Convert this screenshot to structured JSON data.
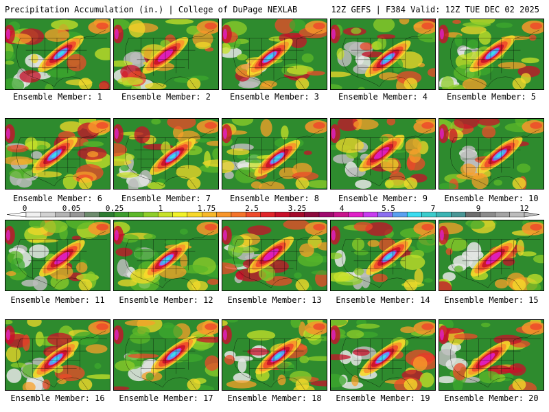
{
  "header": {
    "title_left": "Precipitation Accumulation (in.) | College of DuPage NEXLAB",
    "title_right": "12Z GEFS | F384 Valid: 12Z TUE DEC 02 2025"
  },
  "members": [
    {
      "label": "Ensemble Member: 1"
    },
    {
      "label": "Ensemble Member: 2"
    },
    {
      "label": "Ensemble Member: 3"
    },
    {
      "label": "Ensemble Member: 4"
    },
    {
      "label": "Ensemble Member: 5"
    },
    {
      "label": "Ensemble Member: 6"
    },
    {
      "label": "Ensemble Member: 7"
    },
    {
      "label": "Ensemble Member: 8"
    },
    {
      "label": "Ensemble Member: 9"
    },
    {
      "label": "Ensemble Member: 10"
    },
    {
      "label": "Ensemble Member: 11"
    },
    {
      "label": "Ensemble Member: 12"
    },
    {
      "label": "Ensemble Member: 13"
    },
    {
      "label": "Ensemble Member: 14"
    },
    {
      "label": "Ensemble Member: 15"
    },
    {
      "label": "Ensemble Member: 16"
    },
    {
      "label": "Ensemble Member: 17"
    },
    {
      "label": "Ensemble Member: 18"
    },
    {
      "label": "Ensemble Member: 19"
    },
    {
      "label": "Ensemble Member: 20"
    }
  ],
  "colorbar": {
    "tick_labels": [
      "0",
      "0.05",
      "0.25",
      "1",
      "1.75",
      "2.5",
      "3.25",
      "4",
      "5.5",
      "7",
      "9",
      "12"
    ],
    "colors": [
      "#f0f0f0",
      "#d2d2d2",
      "#b4b4b4",
      "#969696",
      "#6e8c6e",
      "#2e7d32",
      "#3e9e2e",
      "#5cb82a",
      "#8fce2a",
      "#c8e22a",
      "#f2f22a",
      "#f8d82a",
      "#f8b82a",
      "#f8962a",
      "#f4742a",
      "#ee4a2a",
      "#e0262a",
      "#c8102a",
      "#a40a2a",
      "#8c0a3c",
      "#a00a6e",
      "#c8148c",
      "#e020c8",
      "#c83cf0",
      "#8c6ef0",
      "#5aa0f0",
      "#3cdcf0",
      "#3ccccc",
      "#3cb4b4",
      "#4a9696",
      "#6e6e6e",
      "#8c8c8c",
      "#a4a4a4",
      "#bcbcbc"
    ]
  }
}
